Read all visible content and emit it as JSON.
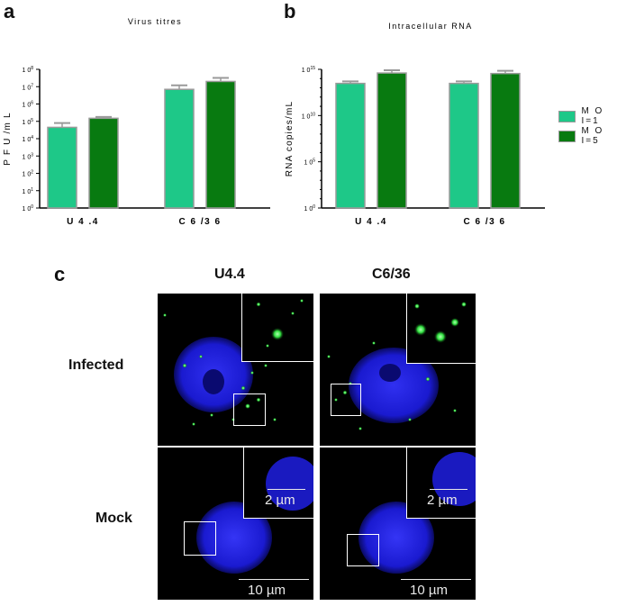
{
  "panels": {
    "a": "a",
    "b": "b",
    "c": "c"
  },
  "legend": [
    {
      "label": "M O I=1",
      "color": "#1ec888"
    },
    {
      "label": "M O I=5",
      "color": "#087a10"
    }
  ],
  "chart_data": [
    {
      "type": "bar",
      "title": "Virus titres",
      "ylabel": "P F U /m L",
      "xlabel": "",
      "yscale": "log",
      "ylim": [
        1,
        100000000
      ],
      "yticks": [
        {
          "base": "1 0",
          "exp": "0"
        },
        {
          "base": "1 0",
          "exp": "1"
        },
        {
          "base": "1 0",
          "exp": "2"
        },
        {
          "base": "1 0",
          "exp": "3"
        },
        {
          "base": "1 0",
          "exp": "4"
        },
        {
          "base": "1 0",
          "exp": "5"
        },
        {
          "base": "1 0",
          "exp": "6"
        },
        {
          "base": "1 0",
          "exp": "7"
        },
        {
          "base": "1 0",
          "exp": "8"
        }
      ],
      "categories": [
        "U 4 .4",
        "C 6 /3 6"
      ],
      "series": [
        {
          "name": "M O I=1",
          "values": [
            45000,
            7000000
          ],
          "errors_upper": [
            80000,
            12000000
          ]
        },
        {
          "name": "M O I=5",
          "values": [
            150000,
            20000000
          ],
          "errors_upper": [
            180000,
            32000000
          ]
        }
      ]
    },
    {
      "type": "bar",
      "title": "Intracellular  RNA",
      "ylabel": "RNA copies/mL",
      "xlabel": "",
      "yscale": "log",
      "ylim": [
        1,
        1000000000000000
      ],
      "yticks": [
        {
          "base": "1 0",
          "exp": "0"
        },
        {
          "base": "1 0",
          "exp": "5"
        },
        {
          "base": "1 0",
          "exp": "10"
        },
        {
          "base": "1 0",
          "exp": "15"
        }
      ],
      "categories": [
        "U 4 .4",
        "C 6 /3 6"
      ],
      "series": [
        {
          "name": "M O I=1",
          "values": [
            30000000000000,
            30000000000000
          ],
          "errors_upper": [
            50000000000000,
            50000000000000
          ]
        },
        {
          "name": "M O I=5",
          "values": [
            400000000000000,
            350000000000000
          ],
          "errors_upper": [
            800000000000000,
            700000000000000
          ]
        }
      ]
    }
  ],
  "microscopy": {
    "columns": [
      "U4.4",
      "C6/36"
    ],
    "rows": [
      "Infected",
      "Mock"
    ],
    "inset_scale_label": "2 µm",
    "main_scale_label": "10 µm",
    "nucleus_color": "#2020e0",
    "signal_color": "#30e040"
  }
}
